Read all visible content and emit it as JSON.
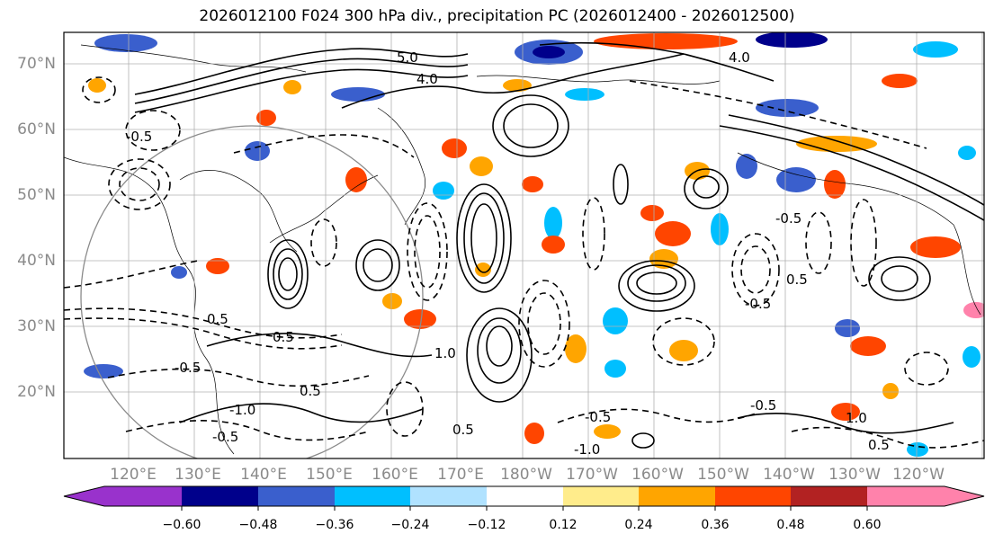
{
  "title": "2026012100 F024 300 hPa div., precipitation PC (2026012400 - 2026012500)",
  "map": {
    "lat_labels": [
      "70°N",
      "60°N",
      "50°N",
      "40°N",
      "30°N",
      "20°N"
    ],
    "lon_labels": [
      "120°E",
      "130°E",
      "140°E",
      "150°E",
      "160°E",
      "170°E",
      "180°W",
      "170°W",
      "160°W",
      "150°W",
      "140°W",
      "130°W",
      "120°W"
    ],
    "contour_labels": [
      "5.0",
      "4.0",
      "4.0",
      "-0.5",
      "0.5",
      "-0.5",
      "0.5",
      "-0.5",
      "0.5",
      "1.0",
      "-1.0",
      "-0.5",
      "0.5",
      "-0.5",
      "0.5",
      "-0.5",
      "-0.5",
      "0.5",
      "-1.0",
      "1.0"
    ],
    "colors": {
      "land_outline": "#000000",
      "grid": "#b0b0b0",
      "labels": "#8a8a8a"
    }
  },
  "colorbar": {
    "ticks": [
      "−0.60",
      "−0.48",
      "−0.36",
      "−0.24",
      "−0.12",
      "0.12",
      "0.24",
      "0.36",
      "0.48",
      "0.60"
    ],
    "colors": [
      "#9932cc",
      "#00008b",
      "#3a5fcd",
      "#00bfff",
      "#b0e2ff",
      "#ffffff",
      "#ffec8b",
      "#ffa500",
      "#ff4500",
      "#b22222",
      "#ff82ab"
    ]
  }
}
